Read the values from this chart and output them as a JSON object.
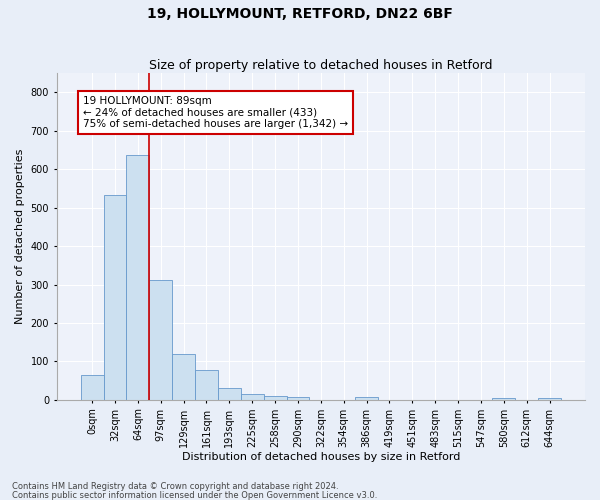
{
  "title1": "19, HOLLYMOUNT, RETFORD, DN22 6BF",
  "title2": "Size of property relative to detached houses in Retford",
  "xlabel": "Distribution of detached houses by size in Retford",
  "ylabel": "Number of detached properties",
  "footer1": "Contains HM Land Registry data © Crown copyright and database right 2024.",
  "footer2": "Contains public sector information licensed under the Open Government Licence v3.0.",
  "bar_labels": [
    "0sqm",
    "32sqm",
    "64sqm",
    "97sqm",
    "129sqm",
    "161sqm",
    "193sqm",
    "225sqm",
    "258sqm",
    "290sqm",
    "322sqm",
    "354sqm",
    "386sqm",
    "419sqm",
    "451sqm",
    "483sqm",
    "515sqm",
    "547sqm",
    "580sqm",
    "612sqm",
    "644sqm"
  ],
  "bar_values": [
    65,
    533,
    638,
    312,
    120,
    78,
    30,
    15,
    10,
    8,
    0,
    0,
    7,
    0,
    0,
    0,
    0,
    0,
    5,
    0,
    5
  ],
  "bar_color": "#cce0f0",
  "bar_edgecolor": "#6699cc",
  "vline_color": "#cc0000",
  "vline_x_index": 2,
  "annotation_text": "19 HOLLYMOUNT: 89sqm\n← 24% of detached houses are smaller (433)\n75% of semi-detached houses are larger (1,342) →",
  "annotation_box_edgecolor": "#cc0000",
  "ylim": [
    0,
    850
  ],
  "yticks": [
    0,
    100,
    200,
    300,
    400,
    500,
    600,
    700,
    800
  ],
  "bg_color": "#e8eef8",
  "plot_bg_color": "#eef2fa",
  "grid_color": "#ffffff",
  "title1_fontsize": 10,
  "title2_fontsize": 9,
  "xlabel_fontsize": 8,
  "ylabel_fontsize": 8,
  "tick_fontsize": 7,
  "footer_fontsize": 6
}
